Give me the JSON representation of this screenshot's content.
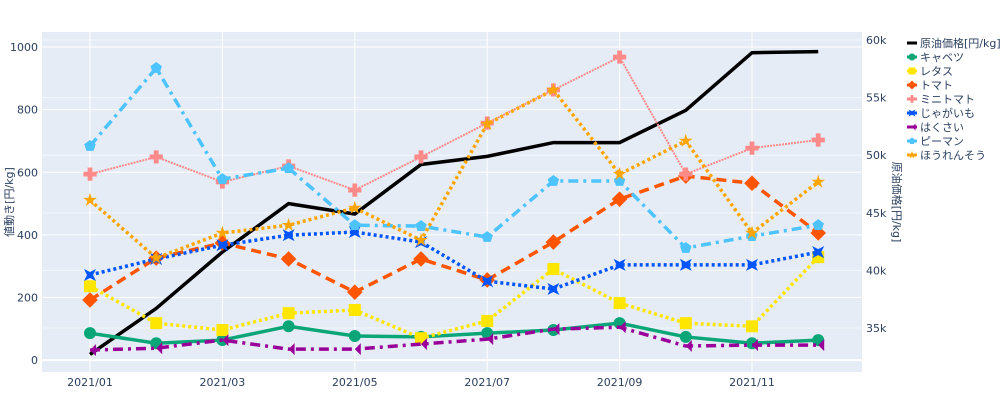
{
  "chart_data": {
    "type": "line",
    "x": [
      "2021/01",
      "2021/02",
      "2021/03",
      "2021/04",
      "2021/05",
      "2021/06",
      "2021/07",
      "2021/08",
      "2021/09",
      "2021/10",
      "2021/11",
      "2021/12"
    ],
    "xticks": [
      "2021/01",
      "2021/03",
      "2021/05",
      "2021/07",
      "2021/09",
      "2021/11"
    ],
    "ylabel": "値動き[円/kg]",
    "y2label": "原油価格[円/kg]",
    "ylim": [
      -38,
      1048
    ],
    "y2lim": [
      31180,
      60700
    ],
    "yticks": [
      "0",
      "200",
      "400",
      "600",
      "800",
      "1000"
    ],
    "y2ticks": [
      "35k",
      "40k",
      "45k",
      "50k",
      "55k",
      "60k"
    ],
    "legend_position": "right",
    "grid": true,
    "series": [
      {
        "name": "原油価格[円/kg]",
        "axis": "y2",
        "color": "#000000",
        "dash": "solid",
        "marker": "none",
        "values": [
          32700,
          36700,
          41600,
          45800,
          44900,
          49200,
          49900,
          51100,
          51100,
          53900,
          58900,
          59000
        ]
      },
      {
        "name": "キャベツ",
        "axis": "y",
        "color": "#0aa678",
        "dash": "solid",
        "marker": "circle",
        "values": [
          86,
          54,
          64,
          108,
          77,
          74,
          86,
          96,
          118,
          74,
          54,
          64
        ]
      },
      {
        "name": "レタス",
        "axis": "y",
        "color": "#ffe600",
        "dash": "dot",
        "marker": "square",
        "values": [
          236,
          118,
          96,
          150,
          160,
          70,
          125,
          291,
          182,
          118,
          108,
          329
        ]
      },
      {
        "name": "トマト",
        "axis": "y",
        "color": "#ff5500",
        "dash": "dash",
        "marker": "diamond",
        "values": [
          192,
          326,
          374,
          323,
          217,
          323,
          256,
          377,
          514,
          588,
          565,
          406
        ]
      },
      {
        "name": "ミニトマト",
        "axis": "y",
        "color": "#ff8a8a",
        "dash": "thin",
        "marker": "cross",
        "values": [
          594,
          649,
          569,
          620,
          543,
          649,
          757,
          863,
          968,
          594,
          677,
          703
        ]
      },
      {
        "name": "じゃがいも",
        "axis": "y",
        "color": "#0055ff",
        "dash": "dot",
        "marker": "x",
        "values": [
          272,
          323,
          367,
          399,
          409,
          377,
          252,
          227,
          304,
          304,
          304,
          345
        ]
      },
      {
        "name": "はくさい",
        "axis": "y",
        "color": "#990099",
        "dash": "dashdot",
        "marker": "bowtie",
        "values": [
          32,
          38,
          64,
          35,
          35,
          51,
          67,
          99,
          105,
          45,
          48,
          48
        ]
      },
      {
        "name": "ピーマン",
        "axis": "y",
        "color": "#4dc3ff",
        "dash": "dashdot",
        "marker": "pentagon",
        "values": [
          684,
          933,
          578,
          613,
          431,
          428,
          393,
          572,
          572,
          358,
          396,
          431
        ]
      },
      {
        "name": "ほうれんそう",
        "axis": "y",
        "color": "#ffa500",
        "dash": "dot",
        "marker": "star",
        "values": [
          511,
          326,
          406,
          431,
          486,
          383,
          754,
          863,
          594,
          700,
          406,
          569
        ]
      }
    ]
  }
}
